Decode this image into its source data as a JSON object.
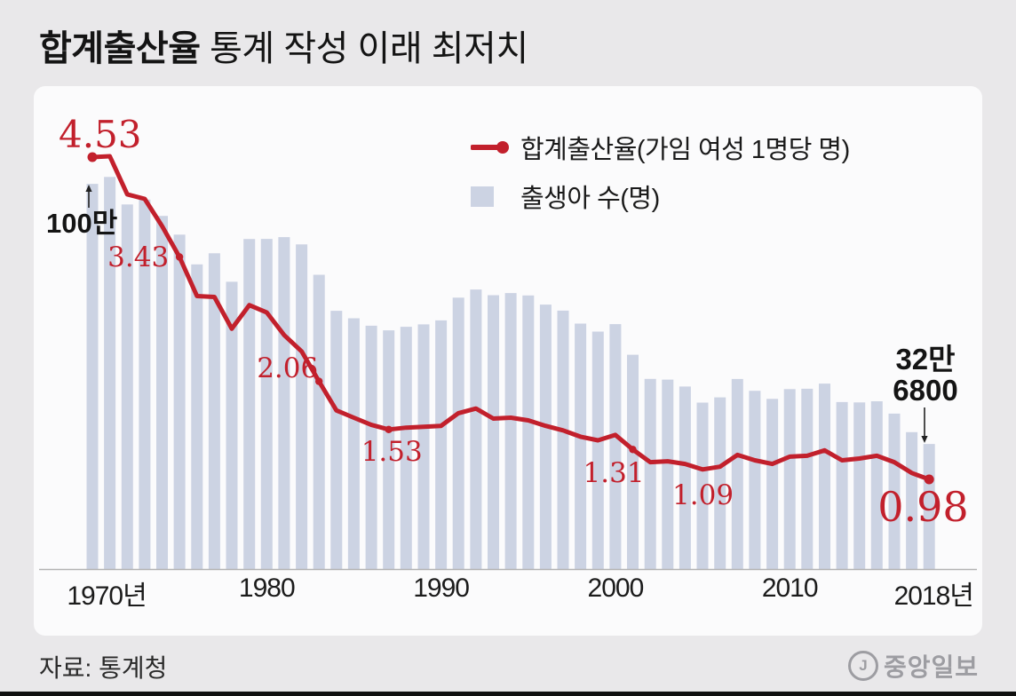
{
  "title": {
    "bold": "합계출산율",
    "rest": " 통계 작성 이래 최저치"
  },
  "legend": [
    {
      "label": "합계출산율(가임 여성 1명당 명)",
      "marker": "line-dot-icon",
      "color": "#c2202c"
    },
    {
      "label": "출생아 수(명)",
      "marker": "bar-swatch-icon",
      "color": "#ccd3e3"
    }
  ],
  "footer": {
    "source": "자료: 통계청",
    "logo": "중앙일보",
    "logo_initial": "J"
  },
  "colors": {
    "background": "#e9e8ea",
    "panel": "#fbfbfc",
    "bar": "#ccd3e3",
    "line_red": "#c2202c",
    "axis": "#b3b3b3",
    "text": "#1a1a1a",
    "logo_gray": "#9d9da2"
  },
  "chart_data": {
    "type": "bar+line",
    "title": "합계출산율 통계 작성 이래 최저치",
    "x": [
      1970,
      1971,
      1972,
      1973,
      1974,
      1975,
      1976,
      1977,
      1978,
      1979,
      1980,
      1981,
      1982,
      1983,
      1984,
      1985,
      1986,
      1987,
      1988,
      1989,
      1990,
      1991,
      1992,
      1993,
      1994,
      1995,
      1996,
      1997,
      1998,
      1999,
      2000,
      2001,
      2002,
      2003,
      2004,
      2005,
      2006,
      2007,
      2008,
      2009,
      2010,
      2011,
      2012,
      2013,
      2014,
      2015,
      2016,
      2017,
      2018
    ],
    "series": [
      {
        "name": "출생아 수(명)",
        "type": "bar",
        "color": "#ccd3e3",
        "values": [
          1006645,
          1024773,
          952780,
          965521,
          922823,
          874030,
          796331,
          825339,
          750728,
          862669,
          862835,
          867409,
          848312,
          769155,
          674793,
          655489,
          636019,
          623831,
          633092,
          639431,
          649738,
          709275,
          730678,
          715826,
          721185,
          715020,
          691226,
          675394,
          641594,
          620668,
          640089,
          559934,
          496911,
          495036,
          476958,
          435031,
          448774,
          496822,
          465892,
          444849,
          470171,
          471265,
          484550,
          436455,
          435435,
          438420,
          406243,
          357771,
          326800
        ]
      },
      {
        "name": "합계출산율(가임 여성 1명당 명)",
        "type": "line",
        "color": "#c2202c",
        "values": [
          4.53,
          4.54,
          4.12,
          4.07,
          3.77,
          3.43,
          3.0,
          2.99,
          2.64,
          2.9,
          2.82,
          2.57,
          2.39,
          2.06,
          1.74,
          1.66,
          1.58,
          1.53,
          1.55,
          1.56,
          1.57,
          1.71,
          1.76,
          1.65,
          1.66,
          1.63,
          1.57,
          1.52,
          1.45,
          1.41,
          1.47,
          1.31,
          1.17,
          1.18,
          1.15,
          1.09,
          1.12,
          1.25,
          1.19,
          1.15,
          1.23,
          1.24,
          1.3,
          1.19,
          1.21,
          1.24,
          1.17,
          1.05,
          0.98
        ],
        "marker_years": [
          1970,
          1975,
          1983,
          1987,
          2001,
          2018
        ]
      }
    ],
    "x_ticks": [
      {
        "year": 1970,
        "label": "1970년"
      },
      {
        "year": 1980,
        "label": "1980"
      },
      {
        "year": 1990,
        "label": "1990"
      },
      {
        "year": 2000,
        "label": "2000"
      },
      {
        "year": 2010,
        "label": "2010"
      },
      {
        "year": 2018,
        "label": "2018년"
      }
    ],
    "annotations": [
      {
        "label": "4.53",
        "year": 1970,
        "value": 4.53
      },
      {
        "label": "3.43",
        "year": 1975,
        "value": 3.43
      },
      {
        "label": "2.06",
        "year": 1983,
        "value": 2.06
      },
      {
        "label": "1.53",
        "year": 1987,
        "value": 1.53
      },
      {
        "label": "1.31",
        "year": 2001,
        "value": 1.31
      },
      {
        "label": "1.09",
        "year": 2005,
        "value": 1.09
      },
      {
        "label": "0.98",
        "year": 2018,
        "value": 0.98
      }
    ],
    "callouts": [
      {
        "id": "100man",
        "lines": [
          "100만"
        ],
        "year": 1970,
        "points_to": "bar-top",
        "direction": "up"
      },
      {
        "id": "32man6800",
        "lines": [
          "32만",
          "6800"
        ],
        "year": 2018,
        "points_to": "bar-top",
        "direction": "down"
      }
    ],
    "ylim_bar": [
      0,
      1100000
    ],
    "ylim_line": [
      0.5,
      5.0
    ],
    "grid": false,
    "legend_position": "top-right"
  }
}
